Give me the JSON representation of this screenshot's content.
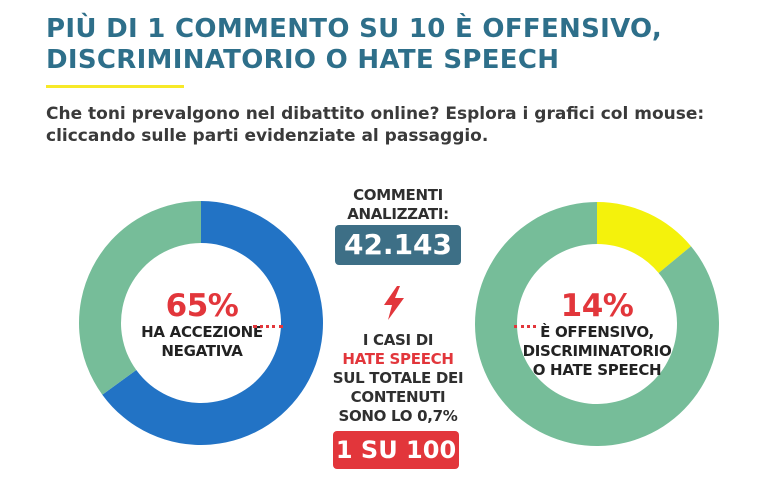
{
  "header": {
    "title": "PIÙ DI 1 COMMENTO SU 10 È OFFENSIVO, DISCRIMINATORIO O HATE SPEECH",
    "subtitle": "Che toni prevalgono nel dibattito online? Esplora i grafici col mouse: cliccando sulle parti evidenziate al passaggio."
  },
  "center": {
    "analyzed_label_line1": "COMMENTI",
    "analyzed_label_line2": "ANALIZZATI:",
    "analyzed_value": "42.143",
    "hate_line1": "I CASI DI",
    "hate_line2": "HATE SPEECH",
    "hate_line3": "SUL TOTALE DEI",
    "hate_line4": "CONTENUTI",
    "hate_line5": "SONO LO 0,7%",
    "ratio_value": "1 SU 100",
    "icon": "lightning-bolt-icon"
  },
  "chart_data": [
    {
      "type": "pie",
      "variant": "donut",
      "center_value": "65%",
      "center_label_line1": "HA ACCEZIONE",
      "center_label_line2": "NEGATIVA",
      "slices": [
        {
          "value": 65,
          "color": "#2273c5"
        },
        {
          "value": 35,
          "color": "#76bd99"
        }
      ]
    },
    {
      "type": "pie",
      "variant": "donut",
      "center_value": "14%",
      "center_label_line1": "È OFFENSIVO,",
      "center_label_line2": "DISCRIMINATORIO",
      "center_label_line3": "O HATE SPEECH",
      "slices": [
        {
          "value": 14,
          "color": "#f4f20c"
        },
        {
          "value": 86,
          "color": "#76bd99"
        }
      ]
    }
  ]
}
